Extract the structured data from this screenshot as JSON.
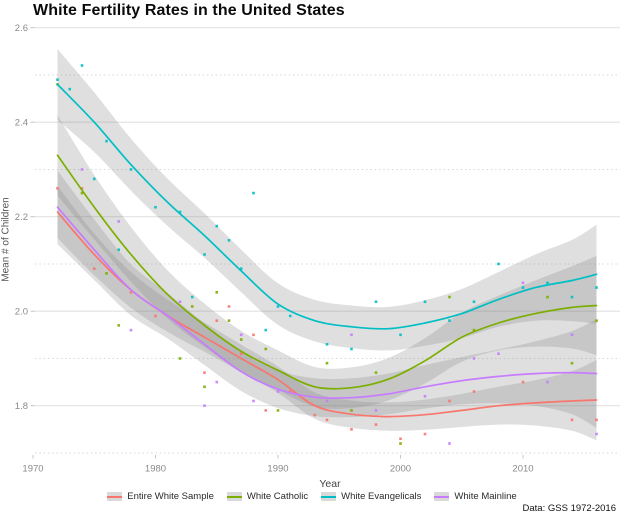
{
  "title": "White Fertility Rates in the United States",
  "caption": "Data: GSS 1972-2016",
  "chart_data": {
    "type": "line",
    "title": "White Fertility Rates in the United States",
    "xlabel": "Year",
    "ylabel": "Mean # of Children",
    "x_ticks": [
      1970,
      1980,
      1990,
      2000,
      2010
    ],
    "y_major_ticks": [
      1.8,
      2.0,
      2.2,
      2.4,
      2.6
    ],
    "y_minor_ticks": [
      1.7,
      1.9,
      2.1,
      2.3,
      2.5
    ],
    "xlim": [
      1970,
      2018
    ],
    "ylim": [
      1.695,
      2.6
    ],
    "grid": "horizontal-only",
    "legend_position": "bottom",
    "smooth_sample_years": [
      1972,
      1975,
      1978,
      1981,
      1984,
      1987,
      1990,
      1993,
      1996,
      1999,
      2002,
      2005,
      2008,
      2011,
      2014,
      2016
    ],
    "band_fill": "#808080",
    "band_opacity": 0.25,
    "series": [
      {
        "key": "entire-white-sample",
        "name": "Entire White Sample",
        "color": "#F8766D",
        "smooth_values": [
          2.21,
          2.12,
          2.045,
          1.99,
          1.945,
          1.9,
          1.855,
          1.8,
          1.782,
          1.777,
          1.781,
          1.79,
          1.8,
          1.806,
          1.81,
          1.812
        ],
        "band_halfwidth": [
          0.055,
          0.044,
          0.038,
          0.034,
          0.031,
          0.029,
          0.028,
          0.028,
          0.029,
          0.03,
          0.032,
          0.035,
          0.04,
          0.048,
          0.063,
          0.085
        ],
        "points": [
          [
            1972,
            2.26
          ],
          [
            1974,
            2.26
          ],
          [
            1975,
            2.09
          ],
          [
            1978,
            2.04
          ],
          [
            1980,
            1.99
          ],
          [
            1984,
            1.87
          ],
          [
            1985,
            1.98
          ],
          [
            1986,
            2.01
          ],
          [
            1987,
            1.91
          ],
          [
            1988,
            1.95
          ],
          [
            1989,
            1.79
          ],
          [
            1991,
            1.83
          ],
          [
            1993,
            1.78
          ],
          [
            1994,
            1.77
          ],
          [
            1996,
            1.75
          ],
          [
            1998,
            1.76
          ],
          [
            2000,
            1.73
          ],
          [
            2002,
            1.74
          ],
          [
            2004,
            1.81
          ],
          [
            2006,
            1.83
          ],
          [
            2010,
            1.85
          ],
          [
            2014,
            1.77
          ],
          [
            2016,
            1.77
          ]
        ]
      },
      {
        "key": "white-catholic",
        "name": "White Catholic",
        "color": "#7CAE00",
        "smooth_values": [
          2.33,
          2.22,
          2.12,
          2.035,
          1.97,
          1.915,
          1.875,
          1.84,
          1.838,
          1.856,
          1.895,
          1.945,
          1.975,
          1.995,
          2.008,
          2.012
        ],
        "band_halfwidth": [
          0.085,
          0.068,
          0.058,
          0.051,
          0.046,
          0.043,
          0.042,
          0.042,
          0.043,
          0.045,
          0.048,
          0.052,
          0.058,
          0.07,
          0.087,
          0.105
        ],
        "points": [
          [
            1972,
            2.48
          ],
          [
            1974,
            2.25
          ],
          [
            1976,
            2.08
          ],
          [
            1977,
            1.97
          ],
          [
            1982,
            1.9
          ],
          [
            1983,
            2.01
          ],
          [
            1984,
            1.84
          ],
          [
            1985,
            2.04
          ],
          [
            1986,
            1.98
          ],
          [
            1987,
            1.94
          ],
          [
            1989,
            1.92
          ],
          [
            1990,
            1.79
          ],
          [
            1994,
            1.89
          ],
          [
            1996,
            1.79
          ],
          [
            1998,
            1.87
          ],
          [
            2000,
            1.72
          ],
          [
            2004,
            2.03
          ],
          [
            2006,
            1.96
          ],
          [
            2012,
            2.03
          ],
          [
            2014,
            1.89
          ],
          [
            2016,
            1.98
          ]
        ]
      },
      {
        "key": "white-evangelicals",
        "name": "White Evangelicals",
        "color": "#00BFC4",
        "smooth_values": [
          2.48,
          2.4,
          2.31,
          2.23,
          2.16,
          2.085,
          2.015,
          1.98,
          1.967,
          1.963,
          1.975,
          1.995,
          2.025,
          2.05,
          2.065,
          2.078
        ],
        "band_halfwidth": [
          0.075,
          0.063,
          0.055,
          0.05,
          0.047,
          0.045,
          0.044,
          0.044,
          0.045,
          0.046,
          0.048,
          0.052,
          0.058,
          0.07,
          0.086,
          0.105
        ],
        "points": [
          [
            1972,
            2.49
          ],
          [
            1973,
            2.47
          ],
          [
            1974,
            2.52
          ],
          [
            1975,
            2.28
          ],
          [
            1976,
            2.36
          ],
          [
            1977,
            2.13
          ],
          [
            1978,
            2.3
          ],
          [
            1980,
            2.22
          ],
          [
            1982,
            2.21
          ],
          [
            1983,
            2.03
          ],
          [
            1984,
            2.12
          ],
          [
            1985,
            2.18
          ],
          [
            1986,
            2.15
          ],
          [
            1987,
            2.09
          ],
          [
            1988,
            2.25
          ],
          [
            1989,
            1.96
          ],
          [
            1990,
            2.01
          ],
          [
            1991,
            1.99
          ],
          [
            1994,
            1.93
          ],
          [
            1996,
            1.92
          ],
          [
            1998,
            2.02
          ],
          [
            2000,
            1.95
          ],
          [
            2002,
            2.02
          ],
          [
            2004,
            1.98
          ],
          [
            2006,
            2.02
          ],
          [
            2008,
            2.1
          ],
          [
            2010,
            2.05
          ],
          [
            2012,
            2.06
          ],
          [
            2014,
            2.03
          ],
          [
            2016,
            2.05
          ]
        ]
      },
      {
        "key": "white-mainline",
        "name": "White Mainline",
        "color": "#C77CFF",
        "smooth_values": [
          2.22,
          2.13,
          2.045,
          1.99,
          1.93,
          1.872,
          1.835,
          1.818,
          1.817,
          1.825,
          1.84,
          1.853,
          1.862,
          1.868,
          1.87,
          1.868
        ],
        "band_halfwidth": [
          0.078,
          0.064,
          0.054,
          0.048,
          0.044,
          0.041,
          0.04,
          0.04,
          0.041,
          0.043,
          0.046,
          0.05,
          0.057,
          0.068,
          0.088,
          0.115
        ],
        "points": [
          [
            1974,
            2.3
          ],
          [
            1977,
            2.19
          ],
          [
            1978,
            1.96
          ],
          [
            1982,
            2.02
          ],
          [
            1984,
            1.8
          ],
          [
            1985,
            1.85
          ],
          [
            1987,
            1.95
          ],
          [
            1988,
            1.81
          ],
          [
            1990,
            1.83
          ],
          [
            1994,
            1.81
          ],
          [
            1996,
            1.95
          ],
          [
            1998,
            1.79
          ],
          [
            2002,
            1.82
          ],
          [
            2004,
            1.72
          ],
          [
            2006,
            1.9
          ],
          [
            2008,
            1.91
          ],
          [
            2010,
            2.06
          ],
          [
            2012,
            1.85
          ],
          [
            2014,
            1.95
          ],
          [
            2016,
            1.74
          ]
        ]
      }
    ]
  }
}
